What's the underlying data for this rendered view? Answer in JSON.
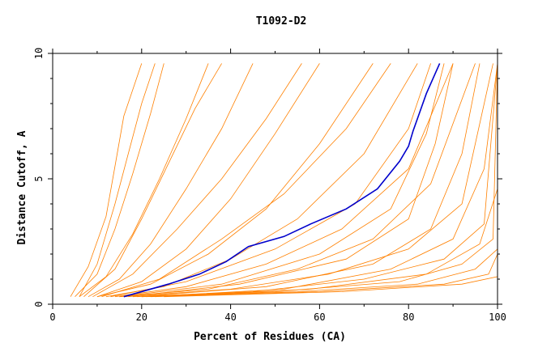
{
  "chart_data": {
    "type": "line",
    "title": "T1092-D2",
    "xlabel": "Percent of Residues (CA)",
    "ylabel": "Distance Cutoff, A",
    "xlim": [
      0,
      100
    ],
    "ylim": [
      0,
      10
    ],
    "x_ticks": [
      0,
      20,
      40,
      60,
      80,
      100
    ],
    "y_ticks": [
      0,
      5,
      10
    ],
    "grid": false,
    "legend": "none",
    "background_series_color": "#ff8000",
    "highlight_series_color": "#0000cc",
    "background_series": [
      {
        "x": [
          4,
          8,
          12,
          14,
          16,
          20
        ],
        "y": [
          0.3,
          1.5,
          3.5,
          5.5,
          7.5,
          9.6
        ]
      },
      {
        "x": [
          5,
          10,
          14,
          18,
          22,
          25
        ],
        "y": [
          0.3,
          1.2,
          3.0,
          5.2,
          7.6,
          9.6
        ]
      },
      {
        "x": [
          6,
          12,
          18,
          24,
          30,
          35
        ],
        "y": [
          0.3,
          1.1,
          2.8,
          5.0,
          7.4,
          9.6
        ]
      },
      {
        "x": [
          8,
          15,
          22,
          30,
          38,
          45
        ],
        "y": [
          0.3,
          1.0,
          2.4,
          4.6,
          7.0,
          9.6
        ]
      },
      {
        "x": [
          10,
          20,
          30,
          40,
          50,
          60
        ],
        "y": [
          0.3,
          0.9,
          2.2,
          4.2,
          6.8,
          9.6
        ]
      },
      {
        "x": [
          10,
          22,
          35,
          48,
          60,
          72
        ],
        "y": [
          0.3,
          0.8,
          2.0,
          3.8,
          6.4,
          9.6
        ]
      },
      {
        "x": [
          12,
          25,
          40,
          55,
          70,
          82
        ],
        "y": [
          0.3,
          0.7,
          1.8,
          3.4,
          6.0,
          9.6
        ]
      },
      {
        "x": [
          14,
          30,
          48,
          65,
          80,
          90
        ],
        "y": [
          0.3,
          0.7,
          1.6,
          3.0,
          5.4,
          9.6
        ]
      },
      {
        "x": [
          15,
          35,
          55,
          72,
          85,
          95
        ],
        "y": [
          0.3,
          0.6,
          1.4,
          2.6,
          4.8,
          9.6
        ]
      },
      {
        "x": [
          16,
          40,
          62,
          80,
          92,
          99
        ],
        "y": [
          0.3,
          0.6,
          1.2,
          2.2,
          4.0,
          9.6
        ]
      },
      {
        "x": [
          18,
          45,
          70,
          88,
          97,
          100
        ],
        "y": [
          0.3,
          0.5,
          1.0,
          1.8,
          3.2,
          9.6
        ]
      },
      {
        "x": [
          20,
          50,
          78,
          92,
          99,
          100
        ],
        "y": [
          0.3,
          0.5,
          0.9,
          1.6,
          2.6,
          9.6
        ]
      },
      {
        "x": [
          20,
          55,
          82,
          95,
          100,
          100
        ],
        "y": [
          0.3,
          0.5,
          0.8,
          1.4,
          2.2,
          9.6
        ]
      },
      {
        "x": [
          22,
          60,
          88,
          98,
          100,
          100
        ],
        "y": [
          0.3,
          0.5,
          0.8,
          1.2,
          2.0,
          9.6
        ]
      },
      {
        "x": [
          25,
          65,
          92,
          100,
          100,
          100
        ],
        "y": [
          0.3,
          0.5,
          0.8,
          1.1,
          1.8,
          9.6
        ]
      },
      {
        "x": [
          6,
          10,
          14,
          17,
          20,
          23
        ],
        "y": [
          0.3,
          1.6,
          4.0,
          6.0,
          8.0,
          9.6
        ]
      },
      {
        "x": [
          7,
          14,
          20,
          26,
          32,
          38
        ],
        "y": [
          0.3,
          1.4,
          3.4,
          5.6,
          7.8,
          9.6
        ]
      },
      {
        "x": [
          9,
          18,
          28,
          38,
          48,
          56
        ],
        "y": [
          0.3,
          1.2,
          3.0,
          5.0,
          7.4,
          9.6
        ]
      },
      {
        "x": [
          11,
          24,
          38,
          52,
          66,
          76
        ],
        "y": [
          0.3,
          1.0,
          2.6,
          4.4,
          7.0,
          9.6
        ]
      },
      {
        "x": [
          13,
          30,
          50,
          68,
          80,
          85
        ],
        "y": [
          0.3,
          0.9,
          2.2,
          4.0,
          7.0,
          9.6
        ]
      },
      {
        "x": [
          15,
          38,
          60,
          76,
          84,
          88
        ],
        "y": [
          0.3,
          0.8,
          2.0,
          3.8,
          6.8,
          9.6
        ]
      },
      {
        "x": [
          17,
          42,
          66,
          80,
          86,
          90
        ],
        "y": [
          0.3,
          0.8,
          1.8,
          3.4,
          6.4,
          9.6
        ]
      },
      {
        "x": [
          19,
          48,
          72,
          85,
          92,
          96
        ],
        "y": [
          0.3,
          0.7,
          1.6,
          3.0,
          6.0,
          9.6
        ]
      },
      {
        "x": [
          21,
          52,
          76,
          90,
          97,
          100
        ],
        "y": [
          0.3,
          0.6,
          1.4,
          2.6,
          5.4,
          9.6
        ]
      },
      {
        "x": [
          23,
          58,
          84,
          96,
          100,
          100
        ],
        "y": [
          0.3,
          0.6,
          1.2,
          2.4,
          4.6,
          9.6
        ]
      }
    ],
    "highlight_series": {
      "x": [
        16,
        26,
        33,
        39,
        44,
        52,
        58,
        66,
        73,
        78,
        80,
        81,
        82,
        84,
        87
      ],
      "y": [
        0.3,
        0.8,
        1.2,
        1.7,
        2.3,
        2.7,
        3.2,
        3.8,
        4.6,
        5.7,
        6.3,
        6.9,
        7.4,
        8.4,
        9.6
      ]
    }
  }
}
